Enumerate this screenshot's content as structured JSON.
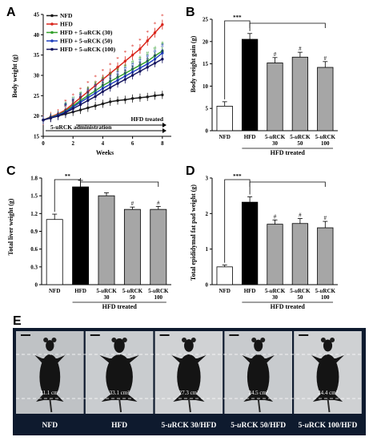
{
  "colors": {
    "NFD": "#1a1a1a",
    "HFD": "#d9261c",
    "D30": "#33a02c",
    "D50": "#1f3fbf",
    "D100": "#14145e",
    "bar_NFD": "#ffffff",
    "bar_HFD": "#000000",
    "bar_treated": "#a6a6a6",
    "photo_frame": "#0e1a2e"
  },
  "panelA": {
    "letter": "A",
    "ylabel": "Body weight (g)",
    "xlabel": "Weeks",
    "legend": [
      "NFD",
      "HFD",
      "HFD + 5-uRCK (30)",
      "HFD + 5-uRCK (50)",
      "HFD + 5-uRCK (100)"
    ],
    "annotation_hfd": "HFD treated",
    "annotation_admin": "5-uRCK administration"
  },
  "panelB": {
    "letter": "B",
    "ylabel": "Body weight gain (g)",
    "sig": "***",
    "hash": "#"
  },
  "panelC": {
    "letter": "C",
    "ylabel": "Total liver weight (g)",
    "sig": "**",
    "hash": "#"
  },
  "panelD": {
    "letter": "D",
    "ylabel": "Total epididymal fat pad weight (g)",
    "sig": "***",
    "hash": "#"
  },
  "bar_common": {
    "cat_labels": [
      [
        "NFD"
      ],
      [
        "HFD"
      ],
      [
        "5-uRCK",
        "30"
      ],
      [
        "5-uRCK",
        "50"
      ],
      [
        "5-uRCK",
        "100"
      ]
    ],
    "group_label": "HFD treated"
  },
  "panelE": {
    "letter": "E",
    "labels": [
      "NFD",
      "HFD",
      "5-uRCK 30/HFD",
      "5-uRCK 50/HFD",
      "5-uRCK 100/HFD"
    ],
    "areas": [
      "21.1 cm²",
      "33.1 cm²",
      "27.3 cm²",
      "24.5 cm²",
      "24.4 cm²"
    ]
  },
  "chart_data": [
    {
      "type": "line",
      "title": "",
      "xlabel": "Weeks",
      "ylabel": "Body weight (g)",
      "xlim": [
        0,
        8.6
      ],
      "ylim": [
        15,
        45
      ],
      "xticks": [
        0,
        2,
        4,
        6,
        8
      ],
      "yticks": [
        15,
        20,
        25,
        30,
        35,
        40,
        45
      ],
      "x": [
        0,
        0.5,
        1,
        1.5,
        2,
        2.5,
        3,
        3.5,
        4,
        4.5,
        5,
        5.5,
        6,
        6.5,
        7,
        7.5,
        8
      ],
      "series": [
        {
          "name": "NFD",
          "values": [
            19,
            19.5,
            20,
            20.5,
            21,
            21.5,
            22,
            22.5,
            23,
            23.5,
            23.8,
            24,
            24.3,
            24.5,
            24.7,
            25,
            25.2
          ],
          "err": 1
        },
        {
          "name": "HFD",
          "values": [
            19,
            19.8,
            20.5,
            21.5,
            23,
            24.5,
            26,
            27.5,
            29,
            30.5,
            32,
            33.5,
            35,
            36.5,
            38.5,
            40.5,
            42.5
          ],
          "err": 1.2
        },
        {
          "name": "HFD + 5-uRCK (30)",
          "values": [
            19,
            19.7,
            20.3,
            21.2,
            22.5,
            23.8,
            25,
            26.2,
            27.5,
            28.5,
            29.5,
            30.5,
            31.5,
            32.5,
            33.5,
            34.8,
            36
          ],
          "err": 1
        },
        {
          "name": "HFD + 5-uRCK (50)",
          "values": [
            19,
            19.6,
            20.2,
            21,
            22.2,
            23.4,
            24.5,
            25.6,
            26.8,
            27.8,
            28.8,
            29.8,
            30.8,
            31.8,
            32.8,
            34,
            35.5
          ],
          "err": 1
        },
        {
          "name": "HFD + 5-uRCK (100)",
          "values": [
            19,
            19.5,
            20,
            20.8,
            21.8,
            22.8,
            23.8,
            24.8,
            26,
            27,
            28,
            29,
            30,
            31,
            32,
            33,
            34
          ],
          "err": 1
        }
      ],
      "significance_labels": [
        "*",
        "#"
      ]
    },
    {
      "type": "bar",
      "title": "",
      "ylabel": "Body weight gain (g)",
      "categories": [
        "NFD",
        "HFD",
        "5-uRCK 30",
        "5-uRCK 50",
        "5-uRCK 100"
      ],
      "values": [
        5.5,
        20.5,
        15.2,
        16.5,
        14.2
      ],
      "errors": [
        1.0,
        1.3,
        1.2,
        1.1,
        1.3
      ],
      "ylim": [
        0,
        25
      ],
      "yticks": [
        0,
        5,
        10,
        15,
        20,
        25
      ],
      "hash_on": [
        2,
        3,
        4
      ]
    },
    {
      "type": "bar",
      "title": "",
      "ylabel": "Total liver weight (g)",
      "categories": [
        "NFD",
        "HFD",
        "5-uRCK 30",
        "5-uRCK 50",
        "5-uRCK 100"
      ],
      "values": [
        1.1,
        1.65,
        1.5,
        1.27,
        1.27
      ],
      "errors": [
        0.09,
        0.11,
        0.05,
        0.04,
        0.05
      ],
      "ylim": [
        0,
        1.8
      ],
      "yticks": [
        0,
        0.3,
        0.6,
        0.9,
        1.2,
        1.5,
        1.8
      ],
      "hash_on": [
        3,
        4
      ]
    },
    {
      "type": "bar",
      "title": "",
      "ylabel": "Total epididymal fat pad weight (g)",
      "categories": [
        "NFD",
        "HFD",
        "5-uRCK 30",
        "5-uRCK 50",
        "5-uRCK 100"
      ],
      "values": [
        0.5,
        2.32,
        1.7,
        1.72,
        1.6
      ],
      "errors": [
        0.05,
        0.15,
        0.12,
        0.14,
        0.18
      ],
      "ylim": [
        0,
        3
      ],
      "yticks": [
        0,
        1,
        2,
        3
      ],
      "hash_on": [
        2,
        3,
        4
      ]
    }
  ]
}
